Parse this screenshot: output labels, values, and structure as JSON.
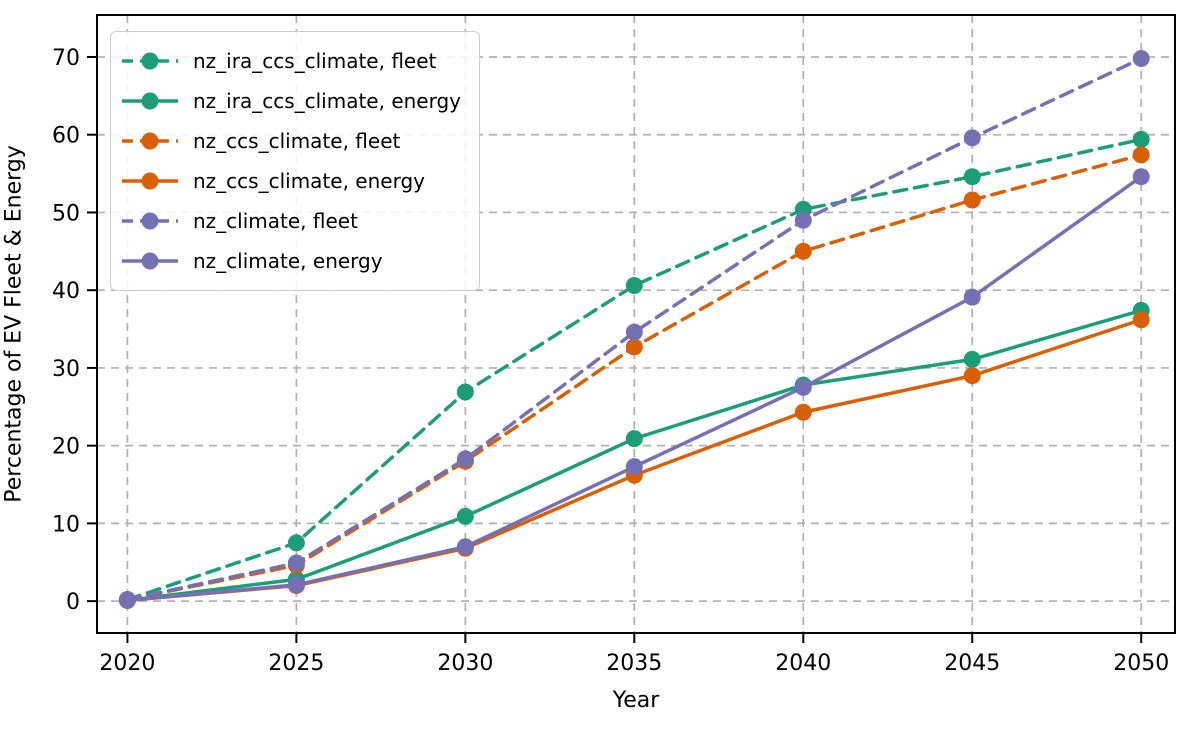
{
  "figure": {
    "background": "#ffffff",
    "spine_color": "#000000",
    "grid_color": "#b0b0b0",
    "tick_label_color": "#000000",
    "x_ticks": [
      "2020",
      "2025",
      "2030",
      "2035",
      "2040",
      "2045",
      "2050"
    ],
    "y_ticks": [
      "0",
      "10",
      "20",
      "30",
      "40",
      "50",
      "60",
      "70"
    ]
  },
  "chart_data": {
    "type": "line",
    "title": "",
    "xlabel": "Year",
    "ylabel": "Percentage of EV Fleet & Energy",
    "x": [
      2020,
      2025,
      2030,
      2035,
      2040,
      2045,
      2050
    ],
    "xlim": [
      2019.1,
      2051.0
    ],
    "ylim": [
      -4.1,
      75.4
    ],
    "grid": true,
    "grid_style": "dashed",
    "legend_position": "upper left",
    "marker": "circle",
    "series": [
      {
        "name": "nz_ira_ccs_climate, fleet",
        "color": "#1b9e77",
        "style": "dashed",
        "values": [
          0.2,
          7.5,
          26.9,
          40.6,
          50.4,
          54.6,
          59.4
        ]
      },
      {
        "name": "nz_ira_ccs_climate, energy",
        "color": "#1b9e77",
        "style": "solid",
        "values": [
          0.1,
          2.8,
          10.9,
          20.9,
          27.8,
          31.1,
          37.4
        ]
      },
      {
        "name": "nz_ccs_climate, fleet",
        "color": "#d95f02",
        "style": "dashed",
        "values": [
          0.2,
          4.6,
          18.0,
          32.7,
          45.0,
          51.6,
          57.4
        ]
      },
      {
        "name": "nz_ccs_climate, energy",
        "color": "#d95f02",
        "style": "solid",
        "values": [
          0.1,
          2.0,
          6.8,
          16.2,
          24.3,
          29.0,
          36.2
        ]
      },
      {
        "name": "nz_climate, fleet",
        "color": "#7570b3",
        "style": "dashed",
        "values": [
          0.2,
          4.9,
          18.3,
          34.6,
          49.0,
          59.6,
          69.8
        ]
      },
      {
        "name": "nz_climate, energy",
        "color": "#7570b3",
        "style": "solid",
        "values": [
          0.1,
          2.1,
          7.0,
          17.3,
          27.5,
          39.1,
          54.6
        ]
      }
    ]
  }
}
